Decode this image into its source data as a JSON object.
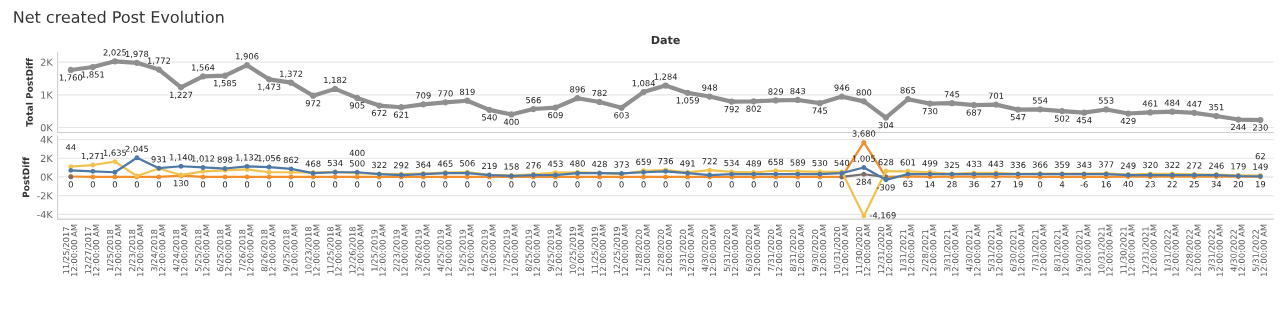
{
  "chart_data": [
    {
      "type": "line",
      "title": "Net created Post Evolution",
      "xlabel": "Date",
      "ylabel": "Total PostDiff",
      "tick_labels": "y",
      "grid": "y",
      "marker": "circle",
      "categories": [
        null,
        null,
        null,
        null,
        null,
        null,
        null,
        null,
        null,
        null,
        null,
        null,
        null,
        null,
        null,
        null,
        null,
        null,
        null,
        null,
        null,
        null,
        null,
        null,
        null,
        null,
        null,
        null,
        null,
        null,
        null,
        null,
        null,
        null,
        null,
        null,
        null,
        null,
        null,
        null,
        null,
        null,
        null,
        null,
        null,
        null,
        null,
        null,
        null,
        null,
        null,
        null,
        null,
        null,
        null
      ],
      "ylim": [
        -150,
        2300
      ],
      "yticks": [
        {
          "value": 0,
          "label": "0K"
        },
        {
          "value": 1000,
          "label": "1K"
        },
        {
          "value": 2000,
          "label": "2K"
        }
      ],
      "series": [
        {
          "color": "#8f8f8f",
          "values": [
            1760,
            1851,
            2025,
            1978,
            1772,
            1227,
            1564,
            1585,
            1906,
            1473,
            1372,
            972,
            1182,
            905,
            672,
            621,
            709,
            770,
            819,
            540,
            400,
            566,
            609,
            896,
            782,
            603,
            1084,
            1284,
            1059,
            948,
            792,
            802,
            829,
            843,
            745,
            946,
            800,
            304,
            865,
            730,
            745,
            687,
            701,
            547,
            554,
            502,
            454,
            553,
            429,
            461,
            484,
            447,
            351,
            244,
            230
          ],
          "value_labels": [
            "1,760",
            "1,851",
            "2,025",
            "1,978",
            "1,772",
            "1,227",
            "1,564",
            "1,585",
            "1,906",
            "1,473",
            "1,372",
            "972",
            "1,182",
            "905",
            "672",
            "621",
            "709",
            "770",
            "819",
            "540",
            "400",
            "566",
            "609",
            "896",
            "782",
            "603",
            "1,084",
            "1,284",
            "1,059",
            "948",
            "792",
            "802",
            "829",
            "843",
            "745",
            "946",
            "800",
            "304",
            "865",
            "730",
            "745",
            "687",
            "701",
            "547",
            "554",
            "502",
            "454",
            "553",
            "429",
            "461",
            "484",
            "447",
            "351",
            "244",
            "230"
          ]
        }
      ]
    },
    {
      "type": "line",
      "ylabel": "PostDiff",
      "grid": "y",
      "marker": "circle",
      "categories": [
        "11/25/2017 12:00:00 AM",
        "12/27/2017 12:00:00 AM",
        "1/25/2018 12:00:00 AM",
        "2/23/2018 12:00:00 AM",
        "3/24/2018 12:00:00 AM",
        "4/24/2018 12:00:00 AM",
        "5/25/2018 12:00:00 AM",
        "6/25/2018 12:00:00 AM",
        "7/26/2018 12:00:00 AM",
        "8/26/2018 12:00:00 AM",
        "9/25/2018 12:00:00 AM",
        "10/23/2018 12:00:00 AM",
        "11/25/2018 12:00:00 AM",
        "12/26/2018 12:00:00 AM",
        "1/25/2019 12:00:00 AM",
        "2/23/2019 12:00:00 AM",
        "3/26/2019 12:00:00 AM",
        "4/25/2019 12:00:00 AM",
        "5/25/2019 12:00:00 AM",
        "6/25/2019 12:00:00 AM",
        "7/25/2019 12:00:00 AM",
        "8/25/2019 12:00:00 AM",
        "9/25/2019 12:00:00 AM",
        "10/25/2019 12:00:00 AM",
        "11/25/2019 12:00:00 AM",
        "12/25/2019 12:00:00 AM",
        "1/28/2020 12:00:00 AM",
        "2/28/2020 12:00:00 AM",
        "3/31/2020 12:00:00 AM",
        "4/30/2020 12:00:00 AM",
        "5/31/2020 12:00:00 AM",
        "6/30/2020 12:00:00 AM",
        "7/31/2020 12:00:00 AM",
        "8/31/2020 12:00:00 AM",
        "9/30/2020 12:00:00 AM",
        "10/31/2020 12:00:00 AM",
        "11/30/2020 12:00:00 AM",
        "12/31/2020 12:00:00 AM",
        "1/31/2021 12:00:00 AM",
        "2/28/2021 12:00:00 AM",
        "3/31/2021 12:00:00 AM",
        "4/30/2021 12:00:00 AM",
        "5/31/2021 12:00:00 AM",
        "6/30/2021 12:00:00 AM",
        "7/31/2021 12:00:00 AM",
        "8/31/2021 12:00:00 AM",
        "9/30/2021 12:00:00 AM",
        "10/31/2021 12:00:00 AM",
        "11/30/2021 12:00:00 AM",
        "12/31/2021 12:00:00 AM",
        "1/31/2022 12:00:00 AM",
        "2/28/2022 12:00:00 AM",
        "3/31/2022 12:00:00 AM",
        "4/30/2022 12:00:00 AM",
        "5/31/2022 12:00:00 AM"
      ],
      "ylim": [
        -4500,
        4400
      ],
      "yticks": [
        {
          "value": -4000,
          "label": "-4K"
        },
        {
          "value": -2000,
          "label": "-2K"
        },
        {
          "value": 0,
          "label": "0K"
        },
        {
          "value": 2000,
          "label": "2K"
        },
        {
          "value": 4000,
          "label": "4K"
        }
      ],
      "series": [
        {
          "color": "#f28e2b",
          "values": [
            44,
            0,
            0,
            0,
            0,
            130,
            0,
            0,
            0,
            0,
            0,
            0,
            0,
            0,
            0,
            0,
            0,
            0,
            0,
            0,
            0,
            0,
            0,
            0,
            0,
            0,
            0,
            0,
            0,
            0,
            0,
            0,
            0,
            0,
            0,
            0,
            3680,
            0,
            63,
            14,
            28,
            36,
            27,
            19,
            0,
            4,
            -6,
            16,
            40,
            23,
            22,
            25,
            34,
            20,
            19
          ],
          "value_labels": [
            "44",
            "0",
            "0",
            "0",
            "0",
            "130",
            "0",
            "0",
            "0",
            "0",
            "0",
            "0",
            "0",
            "0",
            "0",
            "0",
            "0",
            "0",
            "0",
            "0",
            "0",
            "0",
            "0",
            "0",
            "0",
            "0",
            "0",
            "0",
            "0",
            "0",
            "0",
            "0",
            "0",
            "0",
            "0",
            "0",
            "3,680",
            null,
            "63",
            "14",
            "28",
            "36",
            "27",
            "19",
            "0",
            "4",
            "-6",
            "16",
            "40",
            "23",
            "22",
            "25",
            "34",
            "20",
            "19"
          ]
        },
        {
          "color": "#79706e",
          "values": [
            0,
            null,
            null,
            null,
            null,
            null,
            null,
            null,
            null,
            null,
            null,
            null,
            null,
            null,
            null,
            null,
            null,
            null,
            null,
            null,
            null,
            null,
            null,
            null,
            null,
            null,
            null,
            null,
            null,
            null,
            null,
            null,
            null,
            null,
            null,
            0,
            284,
            0,
            null,
            null,
            null,
            null,
            null,
            null,
            null,
            null,
            null,
            null,
            null,
            null,
            null,
            null,
            null,
            null,
            null
          ],
          "value_labels": [
            "0",
            null,
            null,
            null,
            null,
            null,
            null,
            null,
            null,
            null,
            null,
            null,
            null,
            null,
            null,
            null,
            null,
            null,
            null,
            null,
            null,
            null,
            null,
            null,
            null,
            null,
            null,
            null,
            null,
            null,
            null,
            null,
            null,
            null,
            null,
            null,
            "284",
            null,
            null,
            null,
            null,
            null,
            null,
            null,
            null,
            null,
            null,
            null,
            null,
            null,
            null,
            null,
            null,
            null,
            null
          ]
        },
        {
          "color": "#f1c24e",
          "values": [
            1100,
            1271,
            1635,
            100,
            900,
            200,
            600,
            700,
            800,
            500,
            500,
            468,
            534,
            400,
            322,
            292,
            364,
            465,
            506,
            219,
            158,
            276,
            453,
            480,
            428,
            300,
            659,
            736,
            491,
            722,
            534,
            489,
            658,
            589,
            530,
            540,
            -4169,
            628,
            601,
            499,
            325,
            433,
            443,
            336,
            366,
            359,
            343,
            377,
            249,
            320,
            322,
            272,
            246,
            179,
            149
          ],
          "value_labels": [
            null,
            "1,271",
            "1,635",
            null,
            null,
            null,
            null,
            null,
            null,
            null,
            null,
            "468",
            "534",
            "400",
            "322",
            "292",
            "364",
            "465",
            "506",
            "219",
            "158",
            "276",
            "453",
            "480",
            "428",
            null,
            "659",
            "736",
            "491",
            "722",
            "534",
            "489",
            "658",
            "589",
            "530",
            "540",
            "-4,169",
            "628",
            "601",
            "499",
            "325",
            "433",
            "443",
            "336",
            "366",
            "359",
            "343",
            "377",
            "249",
            "320",
            "322",
            "272",
            "246",
            "179",
            "149"
          ]
        },
        {
          "color": "#4e79a7",
          "values": [
            700,
            600,
            500,
            2045,
            931,
            1140,
            1012,
            898,
            1132,
            1056,
            862,
            400,
            500,
            500,
            300,
            200,
            300,
            400,
            400,
            200,
            100,
            200,
            200,
            400,
            400,
            373,
            500,
            600,
            400,
            200,
            300,
            300,
            300,
            300,
            300,
            400,
            1005,
            -309,
            300,
            300,
            300,
            300,
            300,
            300,
            300,
            300,
            300,
            300,
            200,
            200,
            200,
            200,
            200,
            100,
            62
          ],
          "value_labels": [
            null,
            null,
            null,
            "2,045",
            "931",
            "1,140",
            "1,012",
            "898",
            "1,132",
            "1,056",
            "862",
            null,
            null,
            "500",
            null,
            null,
            null,
            null,
            null,
            null,
            null,
            null,
            null,
            null,
            null,
            "373",
            null,
            null,
            null,
            null,
            null,
            null,
            null,
            null,
            null,
            null,
            "1,005",
            "-309",
            null,
            null,
            null,
            null,
            null,
            null,
            null,
            null,
            null,
            null,
            null,
            null,
            null,
            null,
            null,
            null,
            "62"
          ]
        }
      ]
    }
  ]
}
